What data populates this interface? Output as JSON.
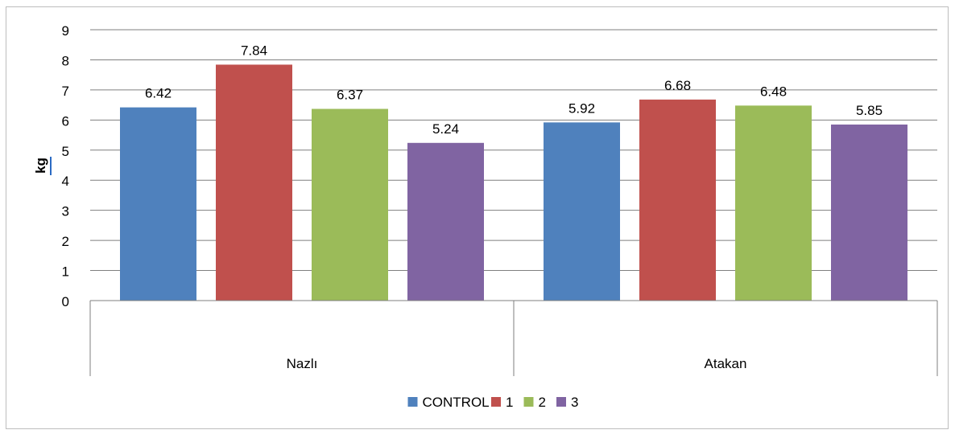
{
  "chart_data": {
    "type": "bar",
    "categories": [
      "Nazlı",
      "Atakan"
    ],
    "series": [
      {
        "name": "CONTROL",
        "values": [
          6.42,
          5.92
        ],
        "color": "#4f81bd"
      },
      {
        "name": "1",
        "values": [
          7.84,
          6.68
        ],
        "color": "#c0504d"
      },
      {
        "name": "2",
        "values": [
          6.37,
          6.48
        ],
        "color": "#9bbb59"
      },
      {
        "name": "3",
        "values": [
          5.24,
          5.85
        ],
        "color": "#8064a2"
      }
    ],
    "data_labels": [
      [
        "6.42",
        "5.92"
      ],
      [
        "7.84",
        "6.68"
      ],
      [
        "6.37",
        "6.48"
      ],
      [
        "5.24",
        "5.85"
      ]
    ],
    "title": "",
    "xlabel": "",
    "ylabel": "kg",
    "ylim": [
      0,
      9
    ],
    "yticks": [
      "0",
      "1",
      "2",
      "3",
      "4",
      "5",
      "6",
      "7",
      "8",
      "9"
    ],
    "grid": true,
    "legend_position": "bottom"
  }
}
